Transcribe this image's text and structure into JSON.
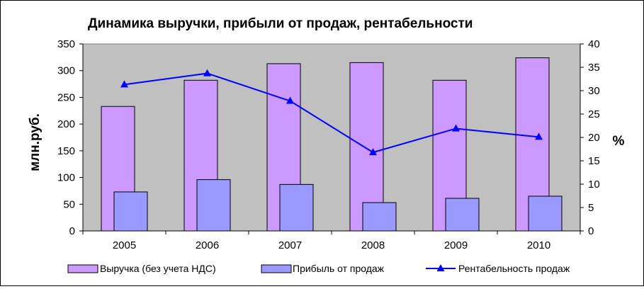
{
  "chart_data": {
    "type": "bar",
    "title": "Динамика выручки, прибыли от продаж, рентабельности",
    "ylabel": "млн.руб.",
    "y2label": "%",
    "categories": [
      "2005",
      "2006",
      "2007",
      "2008",
      "2009",
      "2010"
    ],
    "ylim": [
      0,
      350
    ],
    "yticks": [
      "0",
      "50",
      "100",
      "150",
      "200",
      "250",
      "300",
      "350"
    ],
    "y2lim": [
      0,
      40
    ],
    "y2ticks": [
      "0",
      "5",
      "10",
      "15",
      "20",
      "25",
      "30",
      "35",
      "40"
    ],
    "grid": false,
    "legend_position": "bottom",
    "series": [
      {
        "name": "Выручка (без учета НДС)",
        "type": "bar",
        "axis": "left",
        "color": "#cc99ff",
        "values": [
          233,
          282,
          313,
          315,
          282,
          324
        ]
      },
      {
        "name": "Прибыль от продаж",
        "type": "bar",
        "axis": "left",
        "color": "#9999ff",
        "values": [
          73,
          96,
          87,
          53,
          61,
          65
        ]
      },
      {
        "name": "Рентабельность  продаж",
        "type": "line",
        "axis": "right",
        "color": "#0000ff",
        "marker": "triangle",
        "values": [
          31.3,
          33.7,
          27.8,
          16.8,
          21.9,
          20.1
        ]
      }
    ],
    "plot_background": "#c0c0c0"
  }
}
